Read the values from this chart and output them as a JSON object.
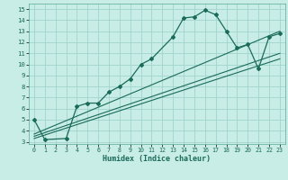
{
  "title": "",
  "xlabel": "Humidex (Indice chaleur)",
  "xlim": [
    -0.5,
    23.5
  ],
  "ylim": [
    2.8,
    15.5
  ],
  "xticks": [
    0,
    1,
    2,
    3,
    4,
    5,
    6,
    7,
    8,
    9,
    10,
    11,
    12,
    13,
    14,
    15,
    16,
    17,
    18,
    19,
    20,
    21,
    22,
    23
  ],
  "yticks": [
    3,
    4,
    5,
    6,
    7,
    8,
    9,
    10,
    11,
    12,
    13,
    14,
    15
  ],
  "bg_color": "#c8ece6",
  "grid_color": "#a0d4cc",
  "line_color": "#1a6b5a",
  "line1_x": [
    0,
    1,
    3,
    4,
    5,
    6,
    7,
    8,
    9,
    10,
    11,
    13,
    14,
    15,
    16,
    17,
    18,
    19,
    20,
    21,
    22,
    23
  ],
  "line1_y": [
    5.0,
    3.2,
    3.3,
    6.2,
    6.5,
    6.5,
    7.5,
    8.0,
    8.7,
    10.0,
    10.5,
    12.5,
    14.2,
    14.3,
    14.9,
    14.5,
    13.0,
    11.5,
    11.8,
    9.6,
    12.5,
    12.8
  ],
  "line2_x": [
    0,
    23
  ],
  "line2_y": [
    3.3,
    10.5
  ],
  "line3_x": [
    0,
    23
  ],
  "line3_y": [
    3.5,
    11.0
  ],
  "line4_x": [
    0,
    23
  ],
  "line4_y": [
    3.7,
    13.0
  ]
}
